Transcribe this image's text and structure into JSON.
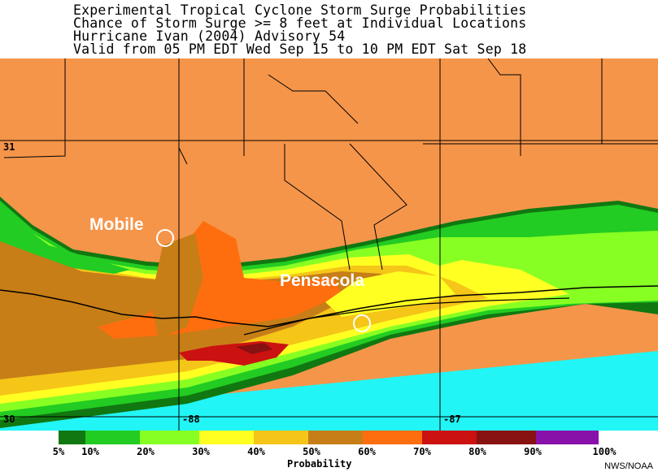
{
  "header": {
    "line1": "Experimental Tropical Cyclone Storm Surge Probabilities",
    "line2": "Chance of Storm Surge >= 8 feet at Individual Locations",
    "line3": "Hurricane Ivan (2004) Advisory 54",
    "line4": "Valid from 05 PM EDT Wed Sep 15 to 10 PM EDT Sat Sep 18"
  },
  "map": {
    "cities": [
      {
        "name": "Mobile"
      },
      {
        "name": "Pensacola"
      }
    ],
    "grid_labels": {
      "lat_31": "31",
      "lat_30": "30",
      "lon_88": "-88",
      "lon_87": "-87"
    },
    "colors": {
      "land": "#f5954a",
      "water": "#22f5f5",
      "boundary": "#000000"
    }
  },
  "legend": {
    "title": "Probability",
    "bins": [
      {
        "from": "5%",
        "color": "#117711"
      },
      {
        "from": "10%",
        "color": "#22cc22"
      },
      {
        "from": "20%",
        "color": "#88ff22"
      },
      {
        "from": "30%",
        "color": "#ffff22"
      },
      {
        "from": "40%",
        "color": "#f5c518"
      },
      {
        "from": "50%",
        "color": "#c77e17"
      },
      {
        "from": "60%",
        "color": "#ff6e0e"
      },
      {
        "from": "70%",
        "color": "#cc1111"
      },
      {
        "from": "80%",
        "color": "#881111"
      },
      {
        "from": "90%",
        "color": "#8811aa"
      }
    ],
    "end_label": "100%"
  },
  "credit": "NWS/NOAA"
}
